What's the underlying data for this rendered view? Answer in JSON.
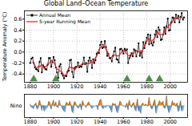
{
  "chart_data": [
    {
      "type": "line",
      "title": "Global Land–Ocean Temperature",
      "y_label": "Temperature Anomaly (°C)",
      "x": [
        1880,
        1881,
        1882,
        1883,
        1884,
        1885,
        1886,
        1887,
        1888,
        1889,
        1890,
        1891,
        1892,
        1893,
        1894,
        1895,
        1896,
        1897,
        1898,
        1899,
        1900,
        1901,
        1902,
        1903,
        1904,
        1905,
        1906,
        1907,
        1908,
        1909,
        1910,
        1911,
        1912,
        1913,
        1914,
        1915,
        1916,
        1917,
        1918,
        1919,
        1920,
        1921,
        1922,
        1923,
        1924,
        1925,
        1926,
        1927,
        1928,
        1929,
        1930,
        1931,
        1932,
        1933,
        1934,
        1935,
        1936,
        1937,
        1938,
        1939,
        1940,
        1941,
        1942,
        1943,
        1944,
        1945,
        1946,
        1947,
        1948,
        1949,
        1950,
        1951,
        1952,
        1953,
        1954,
        1955,
        1956,
        1957,
        1958,
        1959,
        1960,
        1961,
        1962,
        1963,
        1964,
        1965,
        1966,
        1967,
        1968,
        1969,
        1970,
        1971,
        1972,
        1973,
        1974,
        1975,
        1976,
        1977,
        1978,
        1979,
        1980,
        1981,
        1982,
        1983,
        1984,
        1985,
        1986,
        1987,
        1988,
        1989,
        1990,
        1991,
        1992,
        1993,
        1994,
        1995,
        1996,
        1997,
        1998,
        1999,
        2000,
        2001,
        2002,
        2003,
        2004,
        2005,
        2006,
        2007,
        2008,
        2009,
        2010,
        2011,
        2012
      ],
      "series": [
        {
          "name": "Annual Mean",
          "color": "#000000",
          "marker": "square",
          "line_style": "solid",
          "values": [
            -0.2,
            -0.12,
            -0.1,
            -0.2,
            -0.28,
            -0.31,
            -0.32,
            -0.35,
            -0.18,
            -0.11,
            -0.37,
            -0.24,
            -0.27,
            -0.31,
            -0.32,
            -0.23,
            -0.11,
            -0.11,
            -0.27,
            -0.18,
            -0.09,
            -0.15,
            -0.28,
            -0.37,
            -0.47,
            -0.26,
            -0.22,
            -0.39,
            -0.43,
            -0.48,
            -0.43,
            -0.44,
            -0.36,
            -0.34,
            -0.15,
            -0.14,
            -0.36,
            -0.46,
            -0.29,
            -0.27,
            -0.27,
            -0.19,
            -0.28,
            -0.26,
            -0.27,
            -0.22,
            -0.1,
            -0.22,
            -0.2,
            -0.36,
            -0.16,
            -0.1,
            -0.16,
            -0.29,
            -0.13,
            -0.2,
            -0.15,
            -0.03,
            -0.01,
            -0.02,
            0.13,
            0.19,
            0.07,
            0.09,
            0.2,
            0.09,
            -0.07,
            -0.03,
            -0.11,
            -0.11,
            -0.17,
            -0.07,
            0.01,
            0.08,
            -0.13,
            -0.14,
            -0.19,
            0.05,
            0.06,
            0.03,
            -0.03,
            0.06,
            0.03,
            0.05,
            -0.2,
            -0.11,
            -0.06,
            -0.02,
            -0.08,
            0.05,
            0.03,
            -0.08,
            0.01,
            0.16,
            -0.07,
            -0.01,
            -0.1,
            0.18,
            0.07,
            0.16,
            0.26,
            0.32,
            0.14,
            0.31,
            0.16,
            0.12,
            0.18,
            0.32,
            0.39,
            0.27,
            0.45,
            0.4,
            0.22,
            0.23,
            0.32,
            0.45,
            0.33,
            0.47,
            0.61,
            0.39,
            0.4,
            0.54,
            0.63,
            0.62,
            0.54,
            0.68,
            0.61,
            0.66,
            0.54,
            0.64,
            0.71,
            0.59,
            0.63
          ]
        },
        {
          "name": "5-year Running Mean",
          "color": "#e41a1c",
          "line_style": "solid",
          "values": [
            null,
            null,
            -0.18,
            -0.2,
            -0.24,
            -0.29,
            -0.29,
            -0.25,
            -0.27,
            -0.25,
            -0.23,
            -0.26,
            -0.3,
            -0.27,
            -0.25,
            -0.22,
            -0.21,
            -0.18,
            -0.15,
            -0.16,
            -0.19,
            -0.21,
            -0.27,
            -0.31,
            -0.32,
            -0.34,
            -0.35,
            -0.36,
            -0.39,
            -0.43,
            -0.43,
            -0.41,
            -0.34,
            -0.29,
            -0.27,
            -0.29,
            -0.28,
            -0.3,
            -0.33,
            -0.3,
            -0.26,
            -0.25,
            -0.25,
            -0.24,
            -0.23,
            -0.21,
            -0.2,
            -0.22,
            -0.21,
            -0.21,
            -0.2,
            -0.21,
            -0.17,
            -0.18,
            -0.19,
            -0.16,
            -0.1,
            -0.08,
            -0.02,
            0.05,
            0.07,
            0.09,
            0.14,
            0.13,
            0.08,
            0.06,
            0.02,
            -0.05,
            -0.1,
            -0.1,
            -0.09,
            -0.05,
            -0.06,
            -0.05,
            -0.07,
            -0.07,
            -0.07,
            -0.04,
            -0.02,
            0.03,
            0.03,
            0.03,
            -0.02,
            -0.03,
            -0.06,
            -0.07,
            -0.09,
            -0.04,
            -0.02,
            -0.02,
            -0.01,
            0.03,
            0.01,
            0.0,
            0.0,
            0.03,
            0.01,
            0.06,
            0.11,
            0.2,
            0.19,
            0.24,
            0.24,
            0.21,
            0.18,
            0.22,
            0.23,
            0.26,
            0.32,
            0.37,
            0.35,
            0.31,
            0.32,
            0.32,
            0.31,
            0.36,
            0.44,
            0.45,
            0.44,
            0.48,
            0.51,
            0.52,
            0.55,
            0.6,
            0.62,
            0.62,
            0.61,
            0.63,
            0.63,
            0.63,
            0.62,
            null,
            null
          ]
        }
      ],
      "volcanoes": [
        1883,
        1902,
        1963,
        1982,
        1991
      ],
      "xlim": [
        1875,
        2015
      ],
      "xticks": [
        1880,
        1900,
        1920,
        1940,
        1960,
        1980,
        2000
      ],
      "ylim": [
        -0.55,
        0.75
      ],
      "yticks": [
        -0.4,
        -0.2,
        {
          "value": 0,
          "label": "0.0"
        },
        0.2,
        0.4,
        0.6
      ],
      "grid": true,
      "legend": "upper left"
    },
    {
      "type": "area",
      "y_label": "Nino",
      "x": [
        1880,
        1881,
        1882,
        1883,
        1884,
        1885,
        1886,
        1887,
        1888,
        1889,
        1890,
        1891,
        1892,
        1893,
        1894,
        1895,
        1896,
        1897,
        1898,
        1899,
        1900,
        1901,
        1902,
        1903,
        1904,
        1905,
        1906,
        1907,
        1908,
        1909,
        1910,
        1911,
        1912,
        1913,
        1914,
        1915,
        1916,
        1917,
        1918,
        1919,
        1920,
        1921,
        1922,
        1923,
        1924,
        1925,
        1926,
        1927,
        1928,
        1929,
        1930,
        1931,
        1932,
        1933,
        1934,
        1935,
        1936,
        1937,
        1938,
        1939,
        1940,
        1941,
        1942,
        1943,
        1944,
        1945,
        1946,
        1947,
        1948,
        1949,
        1950,
        1951,
        1952,
        1953,
        1954,
        1955,
        1956,
        1957,
        1958,
        1959,
        1960,
        1961,
        1962,
        1963,
        1964,
        1965,
        1966,
        1967,
        1968,
        1969,
        1970,
        1971,
        1972,
        1973,
        1974,
        1975,
        1976,
        1977,
        1978,
        1979,
        1980,
        1981,
        1982,
        1983,
        1984,
        1985,
        1986,
        1987,
        1988,
        1989,
        1990,
        1991,
        1992,
        1993,
        1994,
        1995,
        1996,
        1997,
        1998,
        1999,
        2000,
        2001,
        2002,
        2003,
        2004,
        2005,
        2006,
        2007,
        2008,
        2009,
        2010,
        2011,
        2012
      ],
      "values": [
        0.3,
        -0.2,
        -0.3,
        -0.5,
        0.2,
        0.5,
        -0.6,
        -0.4,
        1.0,
        0.4,
        -0.8,
        0.1,
        -0.9,
        -0.7,
        -0.4,
        -0.2,
        0.8,
        0.6,
        -0.6,
        0.3,
        1.0,
        -0.1,
        0.7,
        -0.2,
        -0.3,
        1.0,
        0.2,
        -0.1,
        -0.6,
        -0.9,
        -1.0,
        0.6,
        0.5,
        0.1,
        0.8,
        0.3,
        -1.0,
        -1.2,
        0.7,
        0.6,
        -0.1,
        -0.4,
        -0.3,
        0.4,
        -0.7,
        0.9,
        0.3,
        0.0,
        -0.3,
        0.2,
        0.7,
        0.4,
        -0.1,
        -0.5,
        -0.3,
        -0.1,
        0.0,
        0.1,
        -0.7,
        0.4,
        1.0,
        1.1,
        -0.4,
        -0.5,
        -0.1,
        -0.3,
        0.1,
        0.0,
        -0.2,
        -0.6,
        -1.1,
        0.5,
        0.1,
        0.4,
        -0.8,
        -1.2,
        -0.7,
        0.8,
        0.6,
        0.0,
        -0.1,
        0.0,
        -0.3,
        0.5,
        -0.7,
        1.0,
        0.2,
        -0.3,
        0.3,
        0.6,
        -0.7,
        -0.9,
        1.2,
        -0.9,
        -0.8,
        -1.3,
        0.3,
        0.5,
        0.0,
        0.3,
        0.2,
        -0.1,
        1.5,
        0.4,
        -0.5,
        -0.5,
        0.6,
        1.1,
        -1.3,
        -0.6,
        0.3,
        0.9,
        0.6,
        0.4,
        0.8,
        -0.4,
        -0.4,
        1.8,
        -0.3,
        -1.2,
        -0.9,
        -0.3,
        0.9,
        0.3,
        0.5,
        -0.1,
        0.5,
        -1.0,
        -0.8,
        0.9,
        -0.9,
        -0.8,
        0.1
      ],
      "colors": [
        "#e8891c",
        "#5b9bd5"
      ],
      "xlim": [
        1875,
        2015
      ],
      "xticks": [
        1880,
        1900,
        1920,
        1940,
        1960,
        1980,
        2000
      ],
      "ylim": [
        -2,
        2
      ],
      "tick_labels": "x"
    }
  ]
}
